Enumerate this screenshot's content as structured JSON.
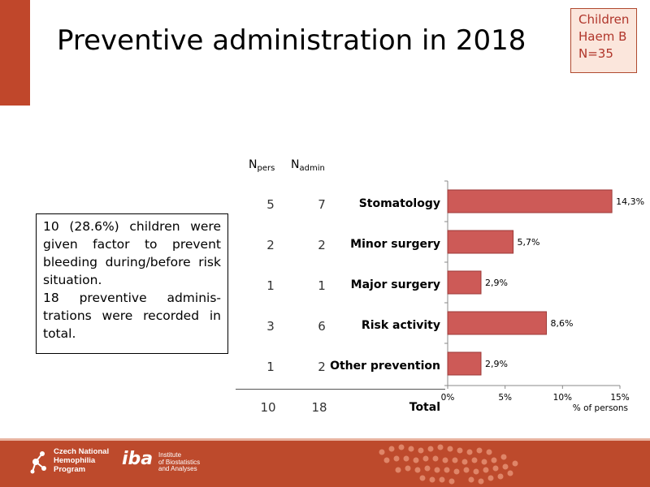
{
  "title": "Preventive administration in 2018",
  "badge": {
    "line1": "Children",
    "line2": "Haem B",
    "line3": "N=35"
  },
  "summary": {
    "para1": "10 (28.6%) children were given factor to prevent bleeding during/before risk situation.",
    "para2": "18 preventive adminis-trations were recorded in total."
  },
  "table": {
    "col_pers": "N",
    "col_pers_sub": "pers",
    "col_admin": "N",
    "col_admin_sub": "admin",
    "rows": [
      {
        "label": "Stomatology",
        "pers": "5",
        "admin": "7"
      },
      {
        "label": "Minor surgery",
        "pers": "2",
        "admin": "2"
      },
      {
        "label": "Major surgery",
        "pers": "1",
        "admin": "1"
      },
      {
        "label": "Risk activity",
        "pers": "3",
        "admin": "6"
      },
      {
        "label": "Other prevention",
        "pers": "1",
        "admin": "2"
      }
    ],
    "total": {
      "label": "Total",
      "pers": "10",
      "admin": "18"
    }
  },
  "chart_data": {
    "type": "bar",
    "orientation": "horizontal",
    "categories": [
      "Stomatology",
      "Minor surgery",
      "Major surgery",
      "Risk activity",
      "Other prevention"
    ],
    "values": [
      14.3,
      5.7,
      2.9,
      8.6,
      2.9
    ],
    "data_labels": [
      "14,3%",
      "5,7%",
      "2,9%",
      "8,6%",
      "2,9%"
    ],
    "xlabel": "% of persons",
    "xlim": [
      0,
      15
    ],
    "xticks": [
      0,
      5,
      10,
      15
    ],
    "xtick_labels": [
      "0%",
      "5%",
      "10%",
      "15%"
    ],
    "grid": false,
    "bar_color": "#cd5a57",
    "bar_edge_color": "#9c3a38"
  },
  "footer": {
    "cnhp_line1": "Czech National",
    "cnhp_line2": "Hemophilia",
    "cnhp_line3": "Program",
    "iba_logo": "iba",
    "iba_line1": "Institute",
    "iba_line2": "of Biostatistics",
    "iba_line3": "and Analyses"
  },
  "colors": {
    "accent": "#c0472b",
    "footer": "#bd4a2c",
    "badge_bg": "#fbe6dc",
    "badge_text": "#b0352a"
  }
}
